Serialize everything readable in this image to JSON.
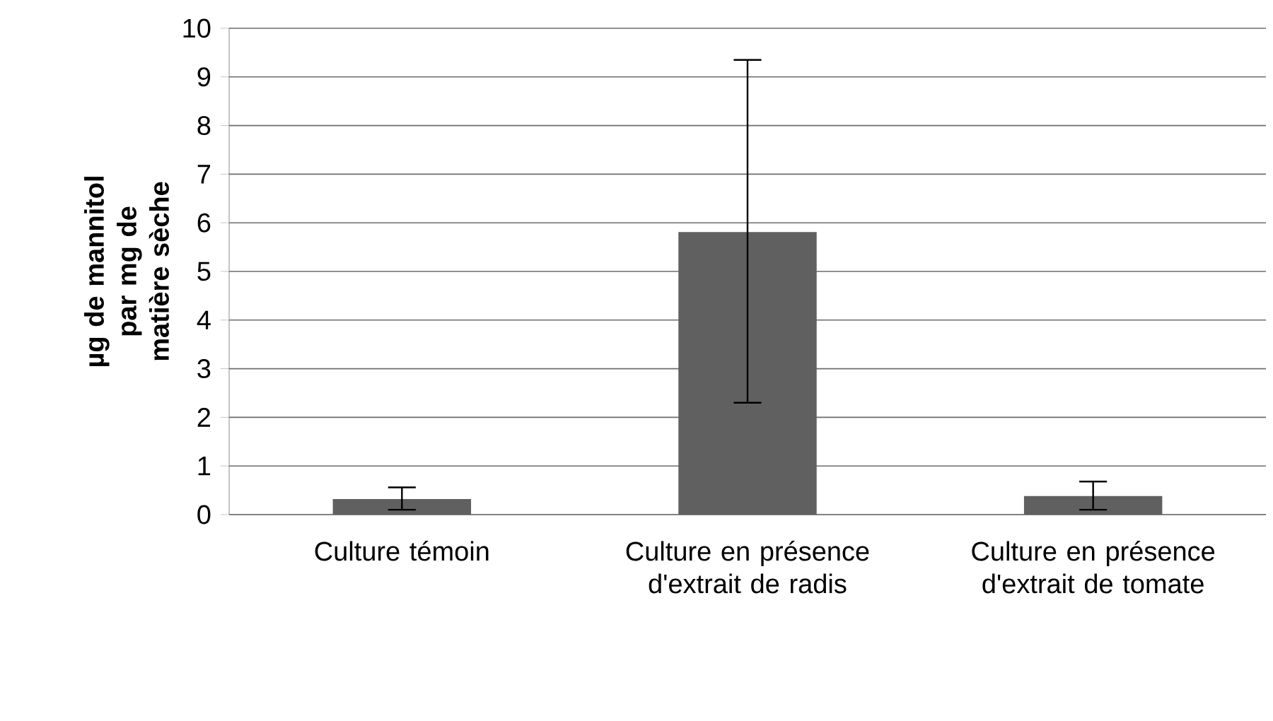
{
  "chart_data": {
    "type": "bar",
    "ylabel": "µg de mannitol par mg de matière sèche",
    "categories": [
      "Culture témoin",
      "Culture en présence d'extrait de radis",
      "Culture en présence d'extrait de tomate"
    ],
    "values": [
      0.32,
      5.81,
      0.38
    ],
    "errors": [
      [
        0.1,
        0.56
      ],
      [
        2.3,
        9.35
      ],
      [
        0.1,
        0.68
      ]
    ],
    "color": "#606060",
    "ylim": [
      0,
      10
    ],
    "yticks": [
      0,
      1,
      2,
      3,
      4,
      5,
      6,
      7,
      8,
      9,
      10
    ],
    "grid": "y"
  }
}
